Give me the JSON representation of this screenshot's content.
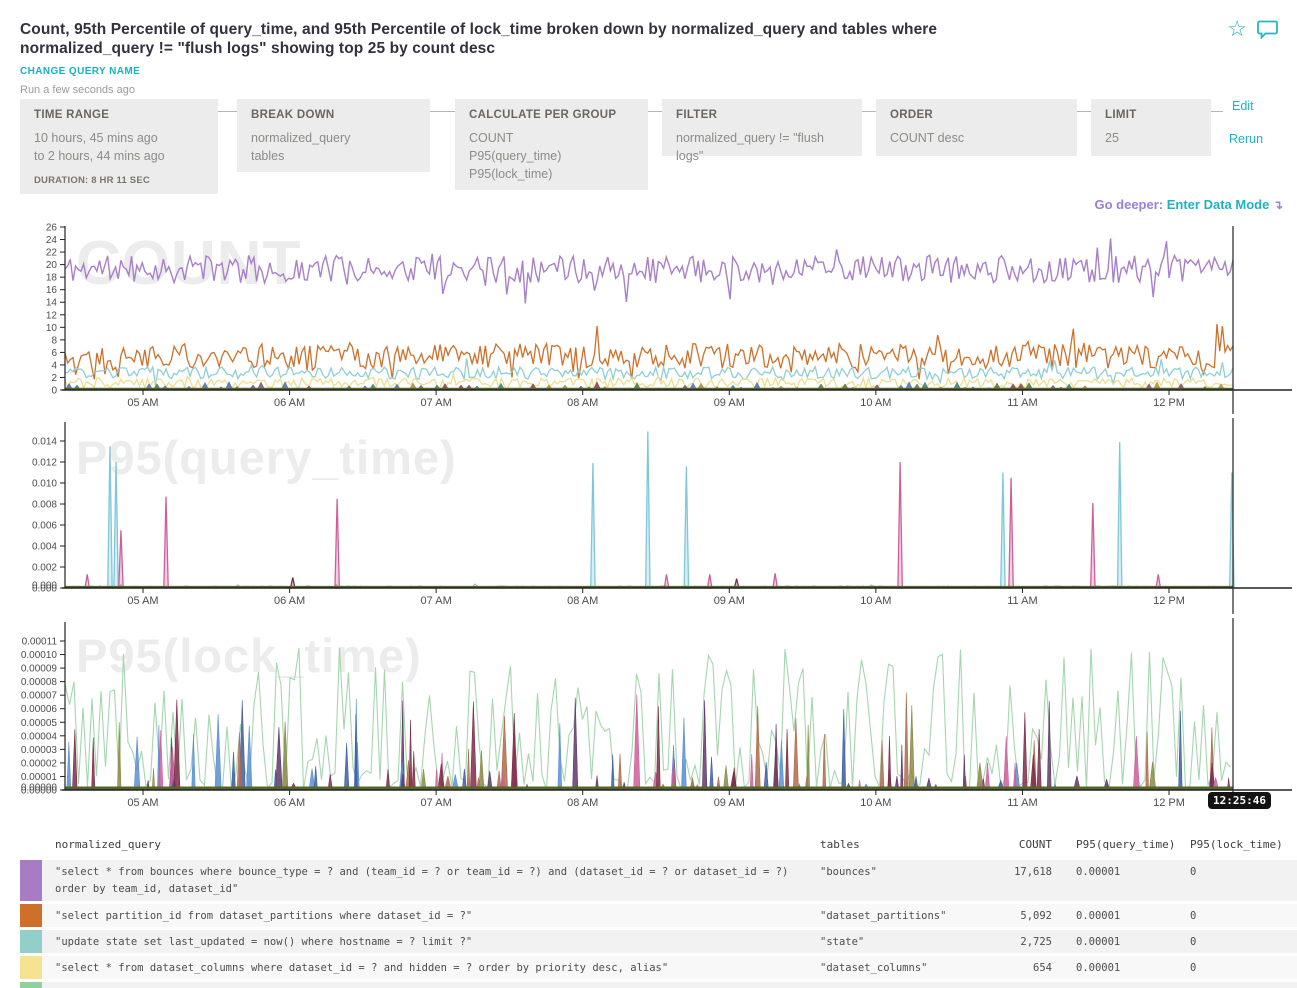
{
  "header": {
    "title": "Count, 95th Percentile of query_time, and 95th Percentile of lock_time broken down by normalized_query and tables where normalized_query != \"flush logs\" showing top 25 by count desc",
    "change_query_name": "CHANGE QUERY NAME",
    "run_info": "Run a few seconds ago"
  },
  "icons": {
    "star": "☆",
    "sort_desc": "▾",
    "data_mode_arrow": "↴"
  },
  "actions": {
    "edit": "Edit",
    "rerun": "Rerun",
    "go_deeper_prefix": "Go deeper:",
    "go_deeper_link": "Enter Data Mode"
  },
  "builder": {
    "time_range": {
      "label": "TIME RANGE",
      "line1": "10 hours, 45 mins ago",
      "line2": "to 2 hours, 44 mins ago",
      "duration": "DURATION: 8 HR 11 SEC"
    },
    "break_down": {
      "label": "BREAK DOWN",
      "values": [
        "normalized_query",
        "tables"
      ]
    },
    "calculate": {
      "label": "CALCULATE PER GROUP",
      "values": [
        "COUNT",
        "P95(query_time)",
        "P95(lock_time)"
      ]
    },
    "filter": {
      "label": "FILTER",
      "value": "normalized_query != \"flush logs\""
    },
    "order": {
      "label": "ORDER",
      "value": "COUNT desc"
    },
    "limit": {
      "label": "LIMIT",
      "value": "25"
    }
  },
  "crosshair": {
    "time": "12:25:46"
  },
  "chart_data": [
    {
      "id": "count",
      "type": "line",
      "title": "COUNT",
      "watermark": "COUNT",
      "ylim": [
        0,
        26
      ],
      "ytick_values": [
        0,
        2,
        4,
        6,
        8,
        10,
        12,
        14,
        16,
        18,
        20,
        22,
        24,
        26
      ],
      "ytick_labels": [
        "0",
        "2",
        "4",
        "6",
        "8",
        "10",
        "12",
        "14",
        "16",
        "18",
        "20",
        "22",
        "24",
        "26"
      ],
      "xtick_labels": [
        "05 AM",
        "06 AM",
        "07 AM",
        "08 AM",
        "09 AM",
        "10 AM",
        "11 AM",
        "12 PM"
      ],
      "grid": false,
      "legend": "none",
      "note": "dense noisy 1-min time series, values estimated from pixels",
      "series": [
        {
          "name": "\"bounces\"",
          "style": "noise-line",
          "color": "#a87fc9",
          "seed": 11,
          "mean": 19.3,
          "amp": 2.2,
          "spike_p": 0.1,
          "spike_amp": 3.5,
          "min": 13.6,
          "max": 25.6,
          "width": 1.4
        },
        {
          "name": "\"dataset_partitions\"",
          "style": "noise-line",
          "color": "#cf7029",
          "seed": 22,
          "mean": 5.4,
          "amp": 2.0,
          "spike_p": 0.08,
          "spike_amp": 5,
          "min": 1.7,
          "max": 13,
          "width": 1.3
        },
        {
          "name": "\"state\"",
          "style": "noise-line",
          "color": "#8ecfd4",
          "seed": 33,
          "mean": 2.7,
          "amp": 1.0,
          "spike_p": 0.05,
          "spike_amp": 1.5,
          "min": 0.7,
          "max": 5.3,
          "width": 1.3
        },
        {
          "name": "\"dataset_columns\"",
          "style": "noise-line",
          "color": "#f0dd8e",
          "seed": 44,
          "mean": 1.1,
          "amp": 0.8,
          "spike_p": 0.05,
          "spike_amp": 1.2,
          "min": 0.05,
          "max": 2.9,
          "width": 1.3
        },
        {
          "name": "other grouped series",
          "style": "bump-band",
          "seed": 55,
          "colors": [
            "#50743f",
            "#7b4f7e",
            "#4a6fb5",
            "#8c3b4a",
            "#3a7a7a",
            "#b0883a"
          ],
          "max": 1.35
        },
        {
          "name": "baseline",
          "style": "flat",
          "color": "#55652a",
          "v": 0.15,
          "width": 2.5
        }
      ]
    },
    {
      "id": "p95_query",
      "type": "line",
      "title": "P95(query_time)",
      "watermark": "P95(query_time)",
      "ylim": [
        0,
        0.0162
      ],
      "ytick_values": [
        0,
        0.002,
        0.004,
        0.006,
        0.008,
        0.01,
        0.012,
        0.014
      ],
      "ytick_labels": [
        "0.000",
        "0.002",
        "0.004",
        "0.006",
        "0.008",
        "0.010",
        "0.012",
        "0.014"
      ],
      "overlap_bottom_label": true,
      "xtick_labels": [
        "05 AM",
        "06 AM",
        "07 AM",
        "08 AM",
        "09 AM",
        "10 AM",
        "11 AM",
        "12 PM"
      ],
      "grid": false,
      "legend": "none",
      "spike_colors": {
        "cyan": "#7ec7d9",
        "pink": "#cf5f9b",
        "maroon": "#7e2d49"
      },
      "spikes": [
        {
          "t": 0.019,
          "v": 0.0013,
          "c": "pink"
        },
        {
          "t": 0.0385,
          "v": 0.0135,
          "c": "cyan"
        },
        {
          "t": 0.0437,
          "v": 0.012,
          "c": "cyan"
        },
        {
          "t": 0.0479,
          "v": 0.0055,
          "c": "pink"
        },
        {
          "t": 0.0865,
          "v": 0.0087,
          "c": "pink"
        },
        {
          "t": 0.195,
          "v": 0.001,
          "c": "maroon"
        },
        {
          "t": 0.233,
          "v": 0.0085,
          "c": "pink"
        },
        {
          "t": 0.452,
          "v": 0.0119,
          "c": "cyan"
        },
        {
          "t": 0.499,
          "v": 0.0149,
          "c": "cyan"
        },
        {
          "t": 0.515,
          "v": 0.0013,
          "c": "pink"
        },
        {
          "t": 0.532,
          "v": 0.0116,
          "c": "cyan"
        },
        {
          "t": 0.552,
          "v": 0.0013,
          "c": "pink"
        },
        {
          "t": 0.575,
          "v": 0.0009,
          "c": "maroon"
        },
        {
          "t": 0.608,
          "v": 0.0014,
          "c": "pink"
        },
        {
          "t": 0.715,
          "v": 0.012,
          "c": "pink"
        },
        {
          "t": 0.803,
          "v": 0.011,
          "c": "cyan"
        },
        {
          "t": 0.81,
          "v": 0.0105,
          "c": "pink"
        },
        {
          "t": 0.88,
          "v": 0.0081,
          "c": "pink"
        },
        {
          "t": 0.903,
          "v": 0.0139,
          "c": "cyan"
        },
        {
          "t": 0.936,
          "v": 0.0013,
          "c": "pink"
        },
        {
          "t": 0.999,
          "v": 0.011,
          "c": "cyan"
        }
      ],
      "series": [
        {
          "name": "baseline noise",
          "style": "noise-line",
          "color": "#8cc695",
          "seed": 77,
          "mean": 0.0001,
          "amp": 0.0001,
          "spike_p": 0.04,
          "spike_amp": 0.00025,
          "min": 0,
          "max": 0.00048,
          "width": 1
        },
        {
          "name": "spikes",
          "style": "spike-list"
        },
        {
          "name": "baseline",
          "style": "flat",
          "color": "#55652a",
          "v": 8e-05,
          "width": 2.5
        }
      ]
    },
    {
      "id": "p95_lock",
      "type": "line",
      "title": "P95(lock_time)",
      "watermark": "P95(lock_time)",
      "ylim": [
        0,
        0.000121
      ],
      "ytick_values": [
        0,
        1e-05,
        2e-05,
        3e-05,
        4e-05,
        5e-05,
        6e-05,
        7e-05,
        8e-05,
        9e-05,
        0.0001,
        0.00011
      ],
      "ytick_labels": [
        "0.00000",
        "0.00001",
        "0.00002",
        "0.00003",
        "0.00004",
        "0.00005",
        "0.00006",
        "0.00007",
        "0.00008",
        "0.00009",
        "0.00010",
        "0.00011"
      ],
      "overlap_bottom_label": true,
      "xtick_labels": [
        "05 AM",
        "06 AM",
        "07 AM",
        "08 AM",
        "09 AM",
        "10 AM",
        "11 AM",
        "12 PM"
      ],
      "grid": false,
      "legend": "none",
      "note": "dominant light-green spiky series up to ~0.000105 with sparse colored spikes up to ~0.00007",
      "series": [
        {
          "name": "dominant green series",
          "style": "zigzag",
          "color": "#a5d6ae",
          "seed": 99,
          "max": 0.000106,
          "width": 1.1
        },
        {
          "name": "colored spikes",
          "style": "random-spikes",
          "seed": 123,
          "count": 135,
          "max": 6.8e-05,
          "palette": [
            "#cf5f9b",
            "#5b8fd6",
            "#7e2d49",
            "#5f3a6b",
            "#8a8a46",
            "#3f5fa0",
            "#b06a4a"
          ]
        },
        {
          "name": "baseline",
          "style": "flat",
          "color": "#55652a",
          "v": 1.5e-06,
          "width": 3
        }
      ]
    }
  ],
  "table": {
    "columns": [
      "normalized_query",
      "tables",
      "COUNT",
      "P95(query_time)",
      "P95(lock_time)"
    ],
    "sort": {
      "column": "COUNT",
      "direction": "desc"
    },
    "rows": [
      {
        "color": "#a87cc5",
        "normalized_query": "\"select * from bounces where bounce_type = ? and (team_id = ? or team_id = ?) and (dataset_id = ? or dataset_id = ?) order by team_id, dataset_id\"",
        "tables": "\"bounces\"",
        "count": "17,618",
        "p95_query_time": "0.00001",
        "p95_lock_time": "0"
      },
      {
        "color": "#ce7029",
        "normalized_query": "\"select partition_id from dataset_partitions where dataset_id = ?\"",
        "tables": "\"dataset_partitions\"",
        "count": "5,092",
        "p95_query_time": "0.00001",
        "p95_lock_time": "0"
      },
      {
        "color": "#92cfc9",
        "normalized_query": "\"update state set last_updated = now() where hostname = ? limit ?\"",
        "tables": "\"state\"",
        "count": "2,725",
        "p95_query_time": "0.00001",
        "p95_lock_time": "0"
      },
      {
        "color": "#f6e392",
        "normalized_query": "\"select * from dataset_columns where dataset_id = ? and hidden = ? order by priority desc, alias\"",
        "tables": "\"dataset_columns\"",
        "count": "654",
        "p95_query_time": "0.00001",
        "p95_lock_time": "0"
      },
      {
        "color": "#90cf9f",
        "clipped": true,
        "normalized_query": "",
        "tables": "",
        "count": "",
        "p95_query_time": "",
        "p95_lock_time": ""
      }
    ]
  }
}
